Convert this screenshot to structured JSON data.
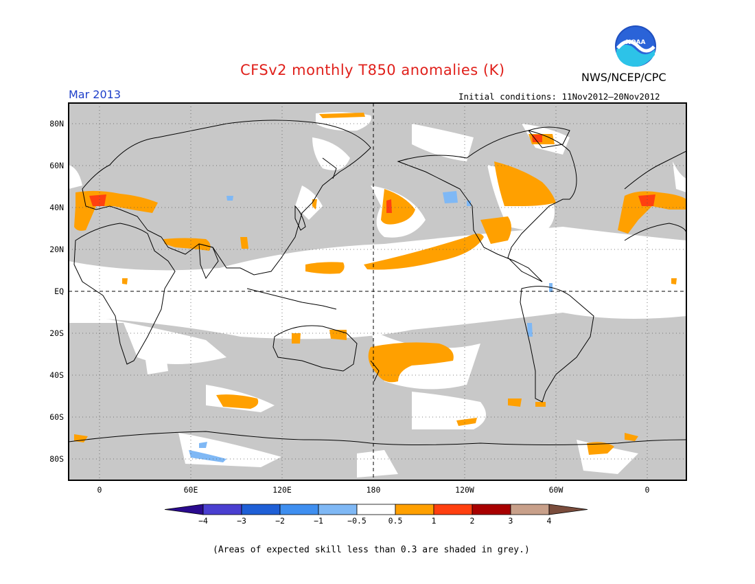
{
  "title": "CFSv2 monthly T850 anomalies (K)",
  "organization": "NWS/NCEP/CPC",
  "logo_text": "NOAA",
  "valid_month": "Mar 2013",
  "initial_conditions": "Initial conditions: 11Nov2012–20Nov2012",
  "footnote": "(Areas of expected skill less than 0.3 are shaded in grey.)",
  "lat_labels": [
    "80N",
    "60N",
    "40N",
    "20N",
    "EQ",
    "20S",
    "40S",
    "60S",
    "80S"
  ],
  "lon_labels": [
    "0",
    "60E",
    "120E",
    "180",
    "120W",
    "60W",
    "0"
  ],
  "colorbar": {
    "labels": [
      "−4",
      "−3",
      "−2",
      "−1",
      "−0.5",
      "0.5",
      "1",
      "2",
      "3",
      "4"
    ],
    "colors": [
      "#2a0a8e",
      "#4a3fd0",
      "#1f5fd6",
      "#3f8ff0",
      "#7fb8f5",
      "#ffffff",
      "#ffa000",
      "#ff4010",
      "#a80000",
      "#c8a08a",
      "#7a4c3c"
    ]
  },
  "map_colors": {
    "low_skill_grey": "#c8c8c8",
    "neutral": "#ffffff",
    "warm_0_5_1": "#ffa000",
    "warm_1_2": "#ff4010",
    "cool_minus1": "#7fb8f5",
    "coastline": "#000000"
  }
}
